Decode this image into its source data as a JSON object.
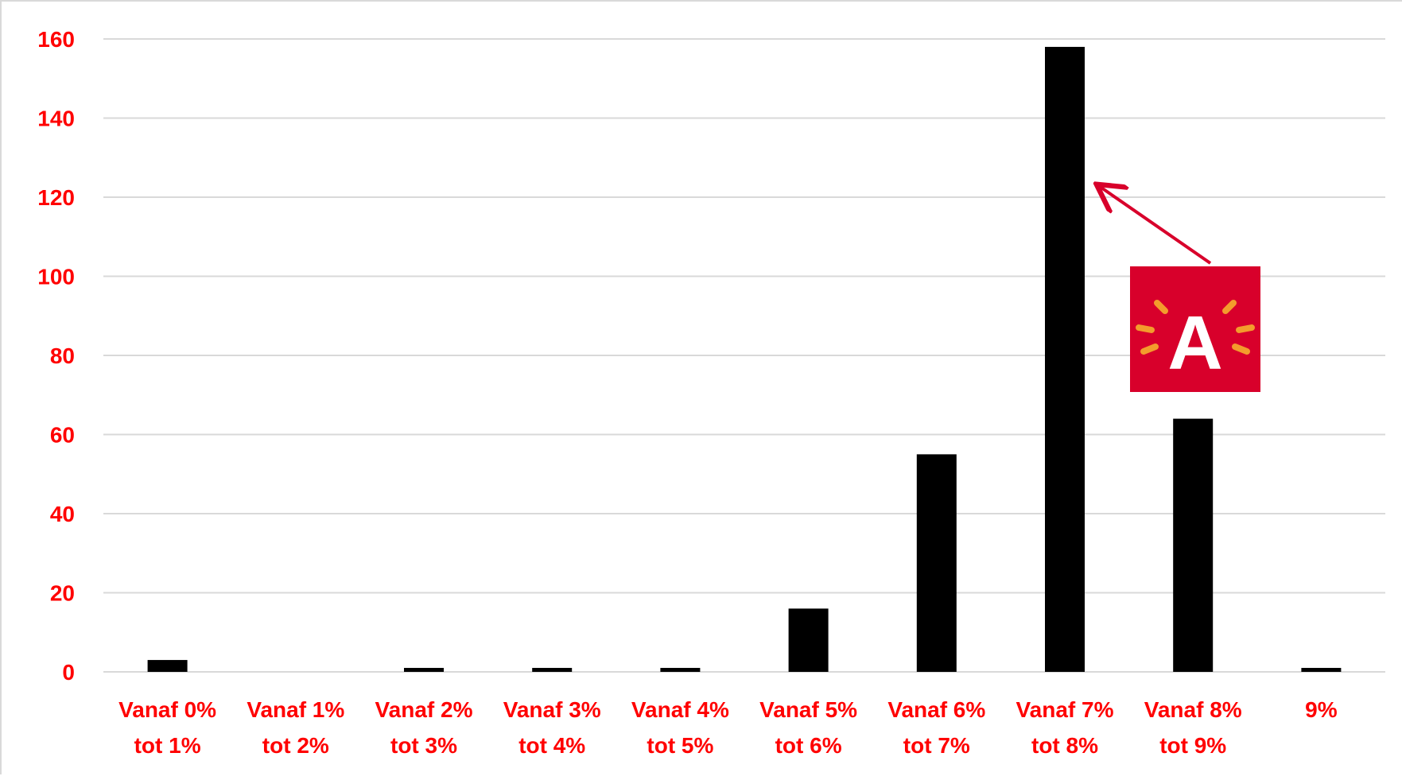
{
  "colors": {
    "label_red": "#ff0000",
    "bar": "#000000",
    "gridline": "#d9d9d9",
    "logo_bg": "#d8002b",
    "logo_rays": "#f39c2c",
    "arrow": "#d8002b"
  },
  "chart_data": {
    "type": "bar",
    "title": "",
    "xlabel": "",
    "ylabel": "",
    "ylim": [
      0,
      160
    ],
    "yticks": [
      0,
      20,
      40,
      60,
      80,
      100,
      120,
      140,
      160
    ],
    "ytick_labels": [
      "0",
      "20",
      "40",
      "60",
      "80",
      "100",
      "120",
      "140",
      "160"
    ],
    "grid": true,
    "legend": "none",
    "categories": [
      [
        "Vanaf 0%",
        "tot 1%"
      ],
      [
        "Vanaf 1%",
        "tot 2%"
      ],
      [
        "Vanaf 2%",
        "tot 3%"
      ],
      [
        "Vanaf 3%",
        "tot 4%"
      ],
      [
        "Vanaf 4%",
        "tot 5%"
      ],
      [
        "Vanaf 5%",
        "tot 6%"
      ],
      [
        "Vanaf 6%",
        "tot 7%"
      ],
      [
        "Vanaf 7%",
        "tot 8%"
      ],
      [
        "Vanaf 8%",
        "tot 9%"
      ],
      [
        "9%"
      ]
    ],
    "values": [
      3,
      0,
      1,
      1,
      1,
      16,
      55,
      158,
      64,
      1
    ],
    "annotation": {
      "logo": "antwerp-city-logo",
      "logo_text": "A",
      "arrow_points_to_category_index": 7
    }
  }
}
